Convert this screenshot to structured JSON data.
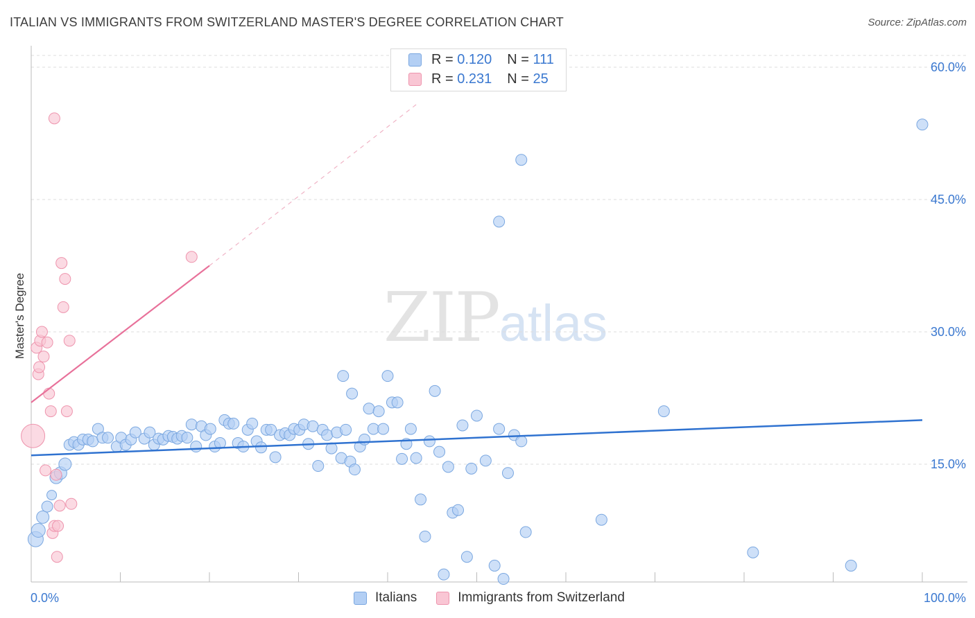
{
  "header": {
    "title": "ITALIAN VS IMMIGRANTS FROM SWITZERLAND MASTER'S DEGREE CORRELATION CHART",
    "source": "Source: ZipAtlas.com"
  },
  "watermark": {
    "zip": "ZIP",
    "atlas": "atlas"
  },
  "legend_top": {
    "rows": [
      {
        "r_label": "R =",
        "r_value": "0.120",
        "n_label": "N =",
        "n_value": "111"
      },
      {
        "r_label": "R =",
        "r_value": "0.231",
        "n_label": "N =",
        "n_value": "25"
      }
    ]
  },
  "legend_bottom": {
    "items": [
      {
        "label": "Italians"
      },
      {
        "label": "Immigrants from Switzerland"
      }
    ]
  },
  "colors": {
    "blue_fill": "#b3cff4",
    "blue_stroke": "#7aa7e0",
    "blue_line": "#2f72d0",
    "pink_fill": "#f9c6d4",
    "pink_stroke": "#ee94ad",
    "pink_line": "#e8719a",
    "grid": "#dddddd",
    "tick_label": "#3a78d0"
  },
  "chart_data": {
    "type": "scatter",
    "title": "ITALIAN VS IMMIGRANTS FROM SWITZERLAND MASTER'S DEGREE CORRELATION CHART",
    "xlabel": "",
    "ylabel": "Master's Degree",
    "xlim": [
      0,
      100
    ],
    "ylim": [
      0,
      60
    ],
    "x_tick_labels": [
      "0.0%",
      "100.0%"
    ],
    "y_ticks": [
      15,
      30,
      45,
      60
    ],
    "y_tick_labels": [
      "15.0%",
      "30.0%",
      "45.0%",
      "60.0%"
    ],
    "grid": true,
    "legend_position": "top-center",
    "series": [
      {
        "name": "Italians",
        "r": 0.12,
        "n": 111,
        "trend": {
          "x": [
            0,
            100
          ],
          "y": [
            16.0,
            20.0
          ],
          "style": "solid"
        },
        "points": [
          [
            0.5,
            6.5
          ],
          [
            0.8,
            7.5
          ],
          [
            1.3,
            9.0
          ],
          [
            1.8,
            10.2
          ],
          [
            2.3,
            11.5
          ],
          [
            2.8,
            13.5
          ],
          [
            3.3,
            14.0
          ],
          [
            3.8,
            15.0
          ],
          [
            4.3,
            17.2
          ],
          [
            4.8,
            17.5
          ],
          [
            5.3,
            17.2
          ],
          [
            5.8,
            17.8
          ],
          [
            6.4,
            17.8
          ],
          [
            6.9,
            17.6
          ],
          [
            7.5,
            19.0
          ],
          [
            8.0,
            18.0
          ],
          [
            8.6,
            18.0
          ],
          [
            9.6,
            17.0
          ],
          [
            10.1,
            18.0
          ],
          [
            10.6,
            17.2
          ],
          [
            11.2,
            17.8
          ],
          [
            11.7,
            18.6
          ],
          [
            12.7,
            17.9
          ],
          [
            13.3,
            18.6
          ],
          [
            13.8,
            17.2
          ],
          [
            14.3,
            17.9
          ],
          [
            14.8,
            17.8
          ],
          [
            15.4,
            18.2
          ],
          [
            15.9,
            18.1
          ],
          [
            16.4,
            17.9
          ],
          [
            16.9,
            18.2
          ],
          [
            17.5,
            18.0
          ],
          [
            18.0,
            19.5
          ],
          [
            18.5,
            17.0
          ],
          [
            19.1,
            19.3
          ],
          [
            19.6,
            18.3
          ],
          [
            20.1,
            19.0
          ],
          [
            20.6,
            17.0
          ],
          [
            21.2,
            17.4
          ],
          [
            21.7,
            20.0
          ],
          [
            22.2,
            19.6
          ],
          [
            22.7,
            19.6
          ],
          [
            23.2,
            17.4
          ],
          [
            23.8,
            17.0
          ],
          [
            24.3,
            18.9
          ],
          [
            24.8,
            19.6
          ],
          [
            25.3,
            17.6
          ],
          [
            25.8,
            16.9
          ],
          [
            26.4,
            18.9
          ],
          [
            26.9,
            18.9
          ],
          [
            27.4,
            15.8
          ],
          [
            27.9,
            18.3
          ],
          [
            28.5,
            18.5
          ],
          [
            29.0,
            18.3
          ],
          [
            29.5,
            19.0
          ],
          [
            30.1,
            18.9
          ],
          [
            30.6,
            19.5
          ],
          [
            31.1,
            17.3
          ],
          [
            31.6,
            19.3
          ],
          [
            32.2,
            14.8
          ],
          [
            32.7,
            18.9
          ],
          [
            33.2,
            18.3
          ],
          [
            33.7,
            16.8
          ],
          [
            34.3,
            18.6
          ],
          [
            34.8,
            15.7
          ],
          [
            35.3,
            18.9
          ],
          [
            35.8,
            15.3
          ],
          [
            36.3,
            14.4
          ],
          [
            36.9,
            17.0
          ],
          [
            37.4,
            17.8
          ],
          [
            37.9,
            21.3
          ],
          [
            38.4,
            19.0
          ],
          [
            39.0,
            21.0
          ],
          [
            39.5,
            19.0
          ],
          [
            40.0,
            25.0
          ],
          [
            40.5,
            22.0
          ],
          [
            41.1,
            22.0
          ],
          [
            41.6,
            15.6
          ],
          [
            42.1,
            17.3
          ],
          [
            42.6,
            19.0
          ],
          [
            43.2,
            15.7
          ],
          [
            43.7,
            11.0
          ],
          [
            44.2,
            6.8
          ],
          [
            44.7,
            17.6
          ],
          [
            45.3,
            23.3
          ],
          [
            45.8,
            16.4
          ],
          [
            46.3,
            2.5
          ],
          [
            46.8,
            14.7
          ],
          [
            47.3,
            9.5
          ],
          [
            47.9,
            9.8
          ],
          [
            48.4,
            19.4
          ],
          [
            48.9,
            4.5
          ],
          [
            49.4,
            14.5
          ],
          [
            50.0,
            20.5
          ],
          [
            51.0,
            15.4
          ],
          [
            52.0,
            3.5
          ],
          [
            52.5,
            42.5
          ],
          [
            53.0,
            2.0
          ],
          [
            53.5,
            14.0
          ],
          [
            54.2,
            18.3
          ],
          [
            55.0,
            17.6
          ],
          [
            55.5,
            7.3
          ],
          [
            55.0,
            49.5
          ],
          [
            35.0,
            25.0
          ],
          [
            64.0,
            8.7
          ],
          [
            71.0,
            21.0
          ],
          [
            81.0,
            5.0
          ],
          [
            92.0,
            3.5
          ],
          [
            100.0,
            53.5
          ],
          [
            52.5,
            19.0
          ],
          [
            36.0,
            23.0
          ]
        ]
      },
      {
        "name": "Immigrants from Switzerland",
        "r": 0.231,
        "n": 25,
        "trend": {
          "x": [
            0,
            20
          ],
          "y": [
            22.0,
            37.5
          ],
          "style": "solid",
          "extended_to": [
            43.5,
            56.0
          ],
          "extended_style": "dashed"
        },
        "points": [
          [
            0.2,
            18.2
          ],
          [
            0.6,
            28.2
          ],
          [
            0.8,
            25.2
          ],
          [
            0.9,
            26.0
          ],
          [
            1.0,
            29.0
          ],
          [
            1.2,
            30.0
          ],
          [
            1.4,
            27.2
          ],
          [
            1.6,
            14.3
          ],
          [
            1.8,
            28.8
          ],
          [
            2.0,
            23.0
          ],
          [
            2.2,
            21.0
          ],
          [
            2.4,
            7.2
          ],
          [
            2.6,
            8.0
          ],
          [
            2.6,
            54.2
          ],
          [
            2.8,
            13.8
          ],
          [
            2.9,
            4.5
          ],
          [
            3.0,
            8.0
          ],
          [
            3.2,
            10.3
          ],
          [
            3.4,
            37.8
          ],
          [
            3.6,
            32.8
          ],
          [
            3.8,
            36.0
          ],
          [
            4.0,
            21.0
          ],
          [
            4.3,
            29.0
          ],
          [
            4.5,
            10.5
          ],
          [
            18.0,
            38.5
          ]
        ]
      }
    ]
  }
}
